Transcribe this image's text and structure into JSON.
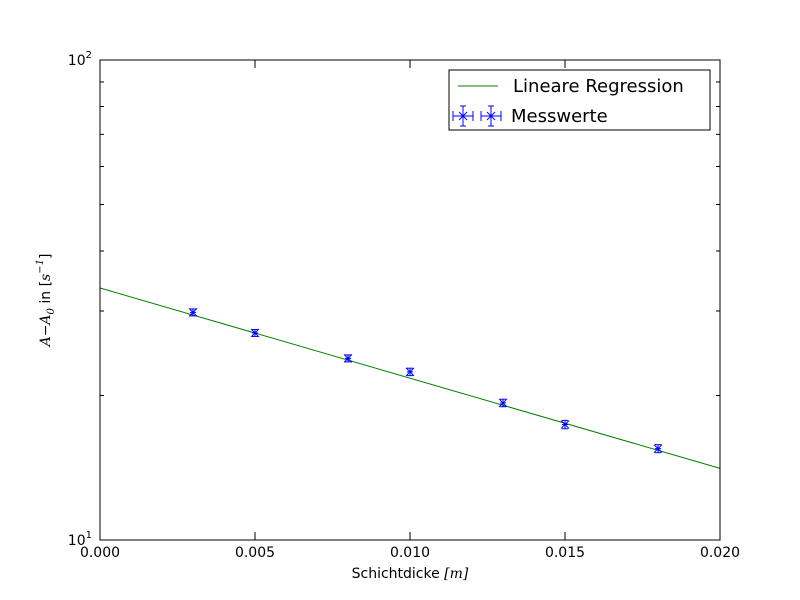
{
  "chart_data": {
    "type": "scatter",
    "xlabel": {
      "text": "Schichtdicke ",
      "unit": "[m]"
    },
    "ylabel": {
      "pre": "A−A",
      "sub": "0",
      "mid": " in [",
      "unit": "s",
      "sup": "−1",
      "post": "]"
    },
    "xlim": [
      0.0,
      0.02
    ],
    "ylim": [
      10,
      100
    ],
    "yscale": "log",
    "x_ticks": [
      "0.000",
      "0.005",
      "0.010",
      "0.015",
      "0.020"
    ],
    "y_ticks": [
      {
        "base": "10",
        "exp": "1"
      },
      {
        "base": "10",
        "exp": "2"
      }
    ],
    "legend_position": "top-right",
    "series": [
      {
        "name": "Lineare Regression",
        "kind": "line",
        "color": "#008000",
        "x": [
          0.0,
          0.02
        ],
        "y": [
          33.5,
          14.1
        ]
      },
      {
        "name": "Messwerte",
        "kind": "errorbar",
        "color": "#0000ff",
        "x": [
          0.003,
          0.005,
          0.008,
          0.01,
          0.013,
          0.015,
          0.018
        ],
        "y": [
          29.8,
          27.0,
          23.9,
          22.4,
          19.3,
          17.4,
          15.5
        ],
        "yerr": [
          0.5,
          0.45,
          0.4,
          0.4,
          0.35,
          0.35,
          0.3
        ],
        "xerr": [
          0.0001,
          0.0001,
          0.0001,
          0.0001,
          0.0001,
          0.0001,
          0.0001
        ]
      }
    ]
  }
}
